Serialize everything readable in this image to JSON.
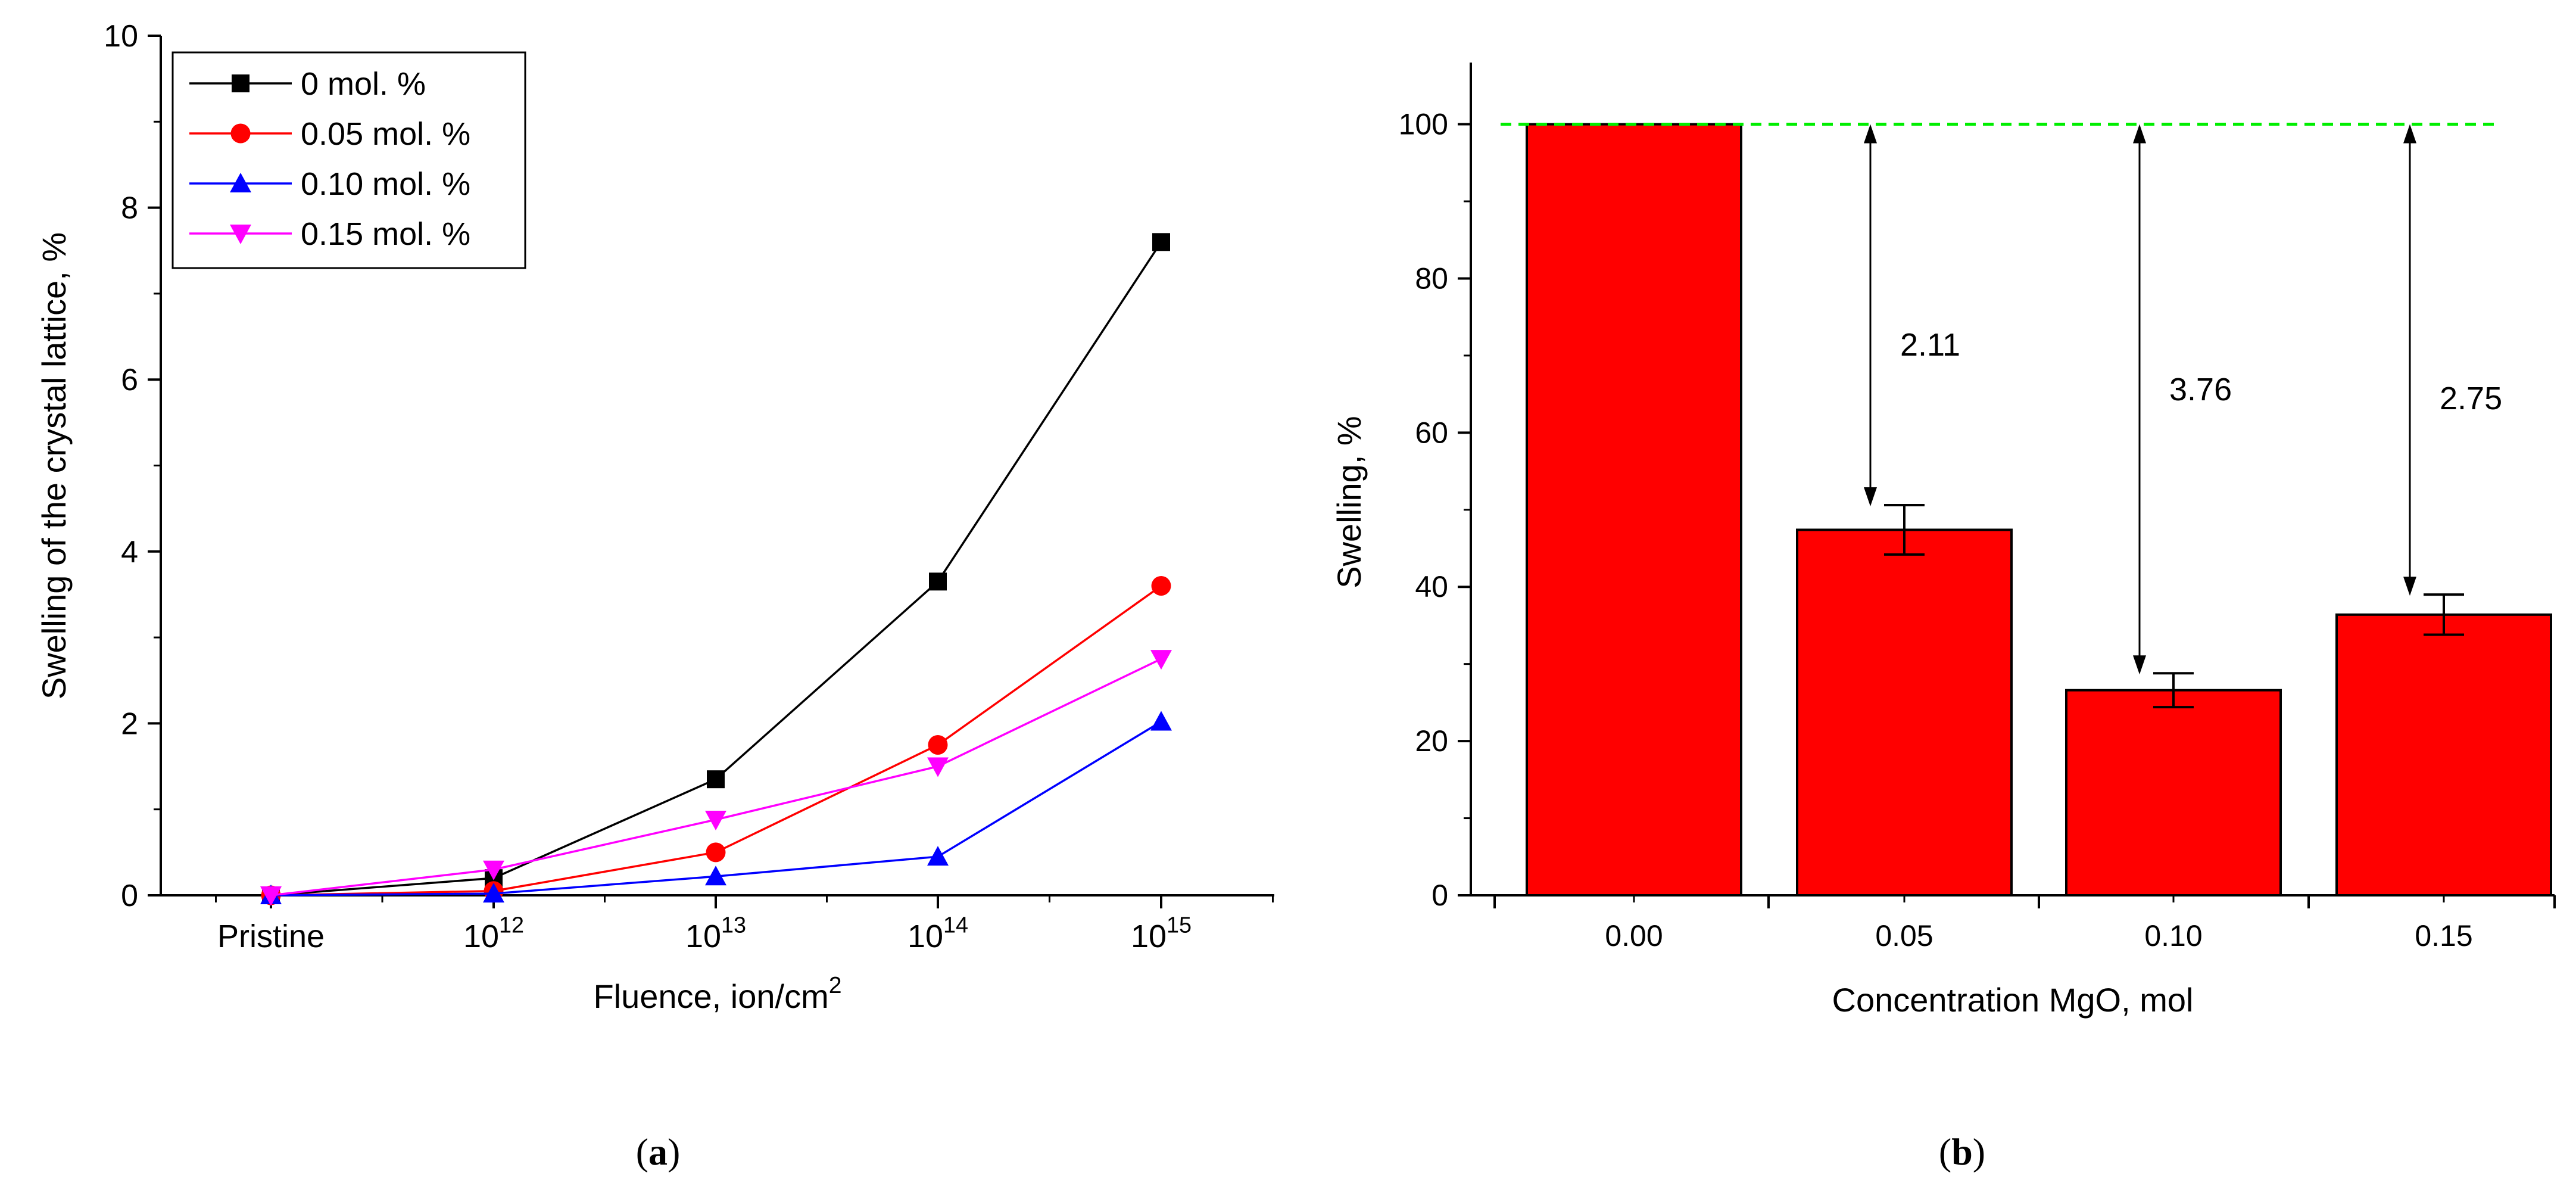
{
  "chart_data": [
    {
      "type": "line",
      "panel_label": "a",
      "xlabel": "Fluence, ion/cm",
      "xlabel_superscript": "2",
      "ylabel": "Swelling of the crystal lattice, %",
      "categories": [
        {
          "base": "Pristine",
          "exp": ""
        },
        {
          "base": "10",
          "exp": "12"
        },
        {
          "base": "10",
          "exp": "13"
        },
        {
          "base": "10",
          "exp": "14"
        },
        {
          "base": "10",
          "exp": "15"
        }
      ],
      "ylim": [
        0,
        10
      ],
      "yticks": [
        0,
        2,
        4,
        6,
        8,
        10
      ],
      "legend_position": "top-left",
      "series": [
        {
          "name": "0 mol. %",
          "color": "#000000",
          "marker": "square",
          "values": [
            0.0,
            0.2,
            1.35,
            3.65,
            7.6
          ]
        },
        {
          "name": "0.05 mol. %",
          "color": "#ff0000",
          "marker": "circle",
          "values": [
            0.0,
            0.05,
            0.5,
            1.75,
            3.6
          ]
        },
        {
          "name": "0.10 mol. %",
          "color": "#0000ff",
          "marker": "triangle-up",
          "values": [
            0.0,
            0.02,
            0.22,
            0.45,
            2.02
          ]
        },
        {
          "name": "0.15 mol. %",
          "color": "#ff00ff",
          "marker": "triangle-down",
          "values": [
            0.0,
            0.3,
            0.88,
            1.5,
            2.75
          ]
        }
      ]
    },
    {
      "type": "bar",
      "panel_label": "b",
      "xlabel": "Concentration MgO, mol",
      "ylabel": "Swelling, %",
      "categories": [
        "0.00",
        "0.05",
        "0.10",
        "0.15"
      ],
      "values": [
        100,
        47.4,
        26.6,
        36.4
      ],
      "errors": [
        0,
        3.2,
        2.2,
        2.6
      ],
      "ylim": [
        0,
        108
      ],
      "yticks": [
        0,
        20,
        40,
        60,
        80,
        100
      ],
      "bar_color": "#ff0000",
      "reference_line": {
        "value": 100,
        "color": "#00ee00",
        "style": "dashed"
      },
      "annotations": [
        {
          "category": "0.05",
          "label": "2.11"
        },
        {
          "category": "0.10",
          "label": "3.76"
        },
        {
          "category": "0.15",
          "label": "2.75"
        }
      ]
    }
  ]
}
